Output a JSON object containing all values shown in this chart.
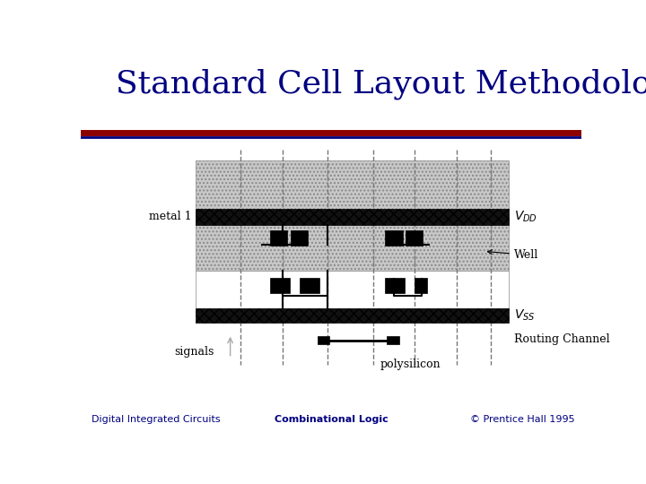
{
  "title": "Standard Cell Layout Methodology",
  "title_color": "#000080",
  "title_fontsize": 26,
  "bg_color": "#ffffff",
  "line1_color": "#8B0000",
  "line2_color": "#000080",
  "footer_left": "Digital Integrated Circuits",
  "footer_center": "Combinational Logic",
  "footer_right": "© Prentice Hall 1995",
  "label_metal1": "metal 1",
  "label_vdd": "$V_{DD}$",
  "label_vss": "$V_{SS}$",
  "label_well": "Well",
  "label_routing": "Routing Channel",
  "label_poly": "polysilicon",
  "label_signals": "signals"
}
